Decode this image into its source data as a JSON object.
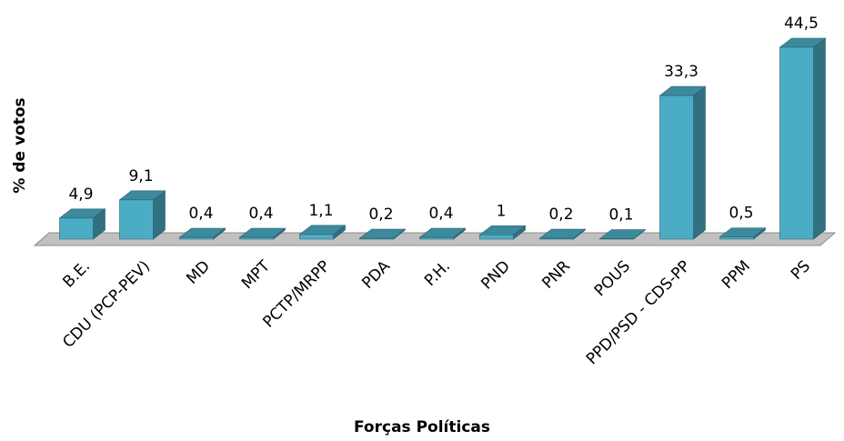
{
  "chart_data": {
    "type": "bar3d",
    "y_label": "% de votos",
    "x_label": "Forças Políticas",
    "categories": [
      "B.E.",
      "CDU (PCP-PEV)",
      "MD",
      "MPT",
      "PCTP/MRPP",
      "PDA",
      "P.H.",
      "PND",
      "PNR",
      "POUS",
      "PPD/PSD - CDS-PP",
      "PPM",
      "PS"
    ],
    "values": [
      4.9,
      9.1,
      0.4,
      0.4,
      1.1,
      0.2,
      0.4,
      1,
      0.2,
      0.1,
      33.3,
      0.5,
      44.5
    ],
    "value_labels": [
      "4,9",
      "9,1",
      "0,4",
      "0,4",
      "1,1",
      "0,2",
      "0,4",
      "1",
      "0,2",
      "0,1",
      "33,3",
      "0,5",
      "44,5"
    ],
    "color": "#4bacc6"
  }
}
